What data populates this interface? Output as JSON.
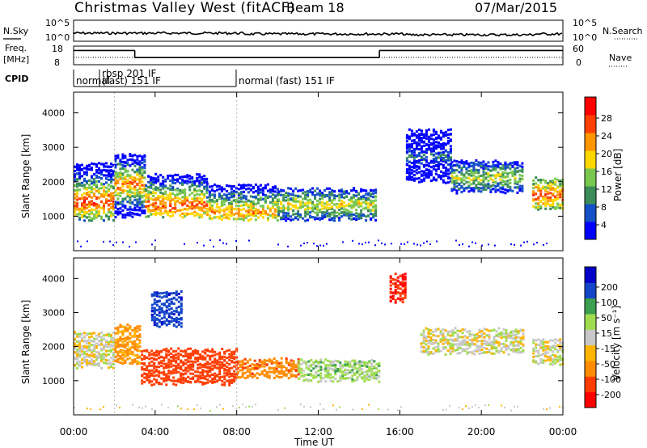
{
  "header": {
    "title": "Christmas Valley West (fitACF)",
    "beam": "Beam 18",
    "date": "07/Mar/2015"
  },
  "meta_rows": {
    "nsky": {
      "label": "N.Sky",
      "ticks_left": [
        "10^5",
        "10^0"
      ],
      "ticks_right": [
        "10^5",
        "10^0"
      ],
      "right_label": "N.Search"
    },
    "freq": {
      "label_line1": "Freq.",
      "label_line2": "[MHz]",
      "ticks_left": [
        "18",
        "8"
      ],
      "ticks_right": [
        "60",
        "0"
      ],
      "right_label": "Nave"
    },
    "cpid": {
      "label": "CPID",
      "segments": [
        {
          "label": "normal",
          "start_h": 0.0
        },
        {
          "label": "rbsp 201 IF",
          "sub": "(fast) 151 IF",
          "start_h": 2.0
        },
        {
          "label": "normal (fast) 151 IF",
          "start_h": 8.0
        }
      ]
    },
    "freq_series": [
      {
        "start_h": 0,
        "end_h": 3.0,
        "mhz": 16.0
      },
      {
        "start_h": 3.0,
        "end_h": 15.0,
        "mhz": 12.0
      },
      {
        "start_h": 15.0,
        "end_h": 24,
        "mhz": 16.0
      }
    ]
  },
  "chart_data": [
    {
      "type": "heatmap",
      "name": "power",
      "ylabel": "Slant Range [km]",
      "ylim": [
        0,
        4600
      ],
      "yticks": [
        "1000",
        "2000",
        "3000",
        "4000"
      ],
      "colorbar": {
        "label": "Power [dB]",
        "ticks": [
          "28",
          "24",
          "20",
          "16",
          "12",
          "8",
          "4"
        ],
        "colors": [
          "#0000ff",
          "#1450c8",
          "#3c8c5a",
          "#78c850",
          "#ffd700",
          "#ff9600",
          "#ff4000",
          "#ff0000"
        ]
      },
      "bands": [
        {
          "start_h": 0.0,
          "end_h": 2.0,
          "range_lo": 900,
          "range_hi": 2500,
          "peak": 1400,
          "level": 0.85
        },
        {
          "start_h": 2.0,
          "end_h": 3.5,
          "range_lo": 1000,
          "range_hi": 2800,
          "peak": 1900,
          "level": 0.75
        },
        {
          "start_h": 3.5,
          "end_h": 6.5,
          "range_lo": 1000,
          "range_hi": 2200,
          "peak": 1300,
          "level": 0.8
        },
        {
          "start_h": 6.5,
          "end_h": 10.0,
          "range_lo": 900,
          "range_hi": 1900,
          "peak": 1100,
          "level": 0.7
        },
        {
          "start_h": 10.0,
          "end_h": 14.8,
          "range_lo": 900,
          "range_hi": 1800,
          "peak": 1300,
          "level": 0.55
        },
        {
          "start_h": 16.3,
          "end_h": 18.5,
          "range_lo": 2000,
          "range_hi": 3500,
          "peak": 2700,
          "level": 0.25
        },
        {
          "start_h": 18.5,
          "end_h": 22.0,
          "range_lo": 1700,
          "range_hi": 2600,
          "peak": 2100,
          "level": 0.5
        },
        {
          "start_h": 22.5,
          "end_h": 24.0,
          "range_lo": 1200,
          "range_hi": 2100,
          "peak": 1600,
          "level": 0.8
        }
      ]
    },
    {
      "type": "heatmap",
      "name": "velocity",
      "ylabel": "Slant Range [km]",
      "ylim": [
        0,
        4600
      ],
      "yticks": [
        "1000",
        "2000",
        "3000",
        "4000"
      ],
      "colorbar": {
        "label": "Velocity [m s⁻¹]",
        "ticks": [
          "200",
          "100",
          "50",
          "15",
          "-15",
          "-50",
          "-100",
          "-200"
        ],
        "colors": [
          "#ff0000",
          "#ff3c00",
          "#ff8c00",
          "#ffb400",
          "#c8c8c8",
          "#a0dc50",
          "#3ca050",
          "#1446c8",
          "#0000c8"
        ]
      },
      "bands": [
        {
          "start_h": 0.0,
          "end_h": 2.0,
          "range_lo": 1400,
          "range_hi": 2400,
          "vel": 0
        },
        {
          "start_h": 2.0,
          "end_h": 3.3,
          "range_lo": 1500,
          "range_hi": 2600,
          "vel": -60
        },
        {
          "start_h": 3.3,
          "end_h": 8.0,
          "range_lo": 900,
          "range_hi": 1900,
          "vel": -150
        },
        {
          "start_h": 8.0,
          "end_h": 11.0,
          "range_lo": 1100,
          "range_hi": 1600,
          "vel": -80
        },
        {
          "start_h": 11.0,
          "end_h": 15.0,
          "range_lo": 1000,
          "range_hi": 1600,
          "vel": 30
        },
        {
          "start_h": 17.0,
          "end_h": 22.0,
          "range_lo": 1800,
          "range_hi": 2500,
          "vel": 0
        },
        {
          "start_h": 22.5,
          "end_h": 24.0,
          "range_lo": 1500,
          "range_hi": 2200,
          "vel": 0
        }
      ],
      "blue_patches": [
        {
          "start_h": 3.8,
          "end_h": 5.3,
          "range_lo": 2600,
          "range_hi": 3600,
          "vel": 180
        }
      ],
      "red_patches": [
        {
          "start_h": 15.5,
          "end_h": 16.3,
          "range_lo": 3300,
          "range_hi": 4100,
          "vel": -200
        }
      ]
    }
  ],
  "xaxis": {
    "label": "Time UT",
    "ticks": [
      "00:00",
      "04:00",
      "08:00",
      "12:00",
      "16:00",
      "20:00",
      "00:00"
    ]
  }
}
